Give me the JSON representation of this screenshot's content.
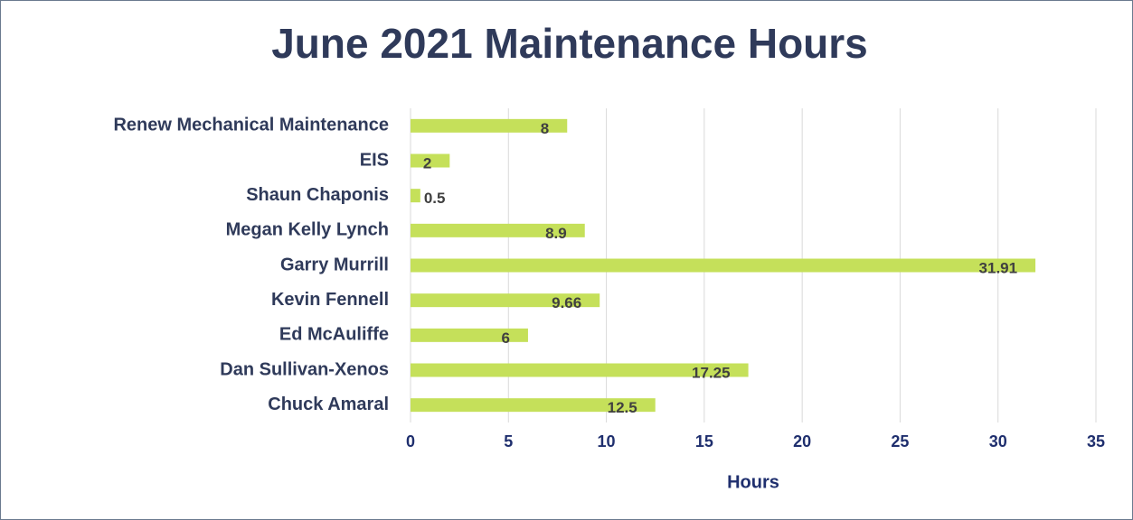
{
  "chart_data": {
    "type": "bar",
    "orientation": "horizontal",
    "title": "June 2021 Maintenance Hours",
    "x_axis_label": "Hours",
    "categories": [
      "Renew Mechanical Maintenance",
      "EIS",
      "Shaun Chaponis",
      "Megan Kelly Lynch",
      "Garry Murrill",
      "Kevin Fennell",
      "Ed McAuliffe",
      "Dan Sullivan-Xenos",
      "Chuck Amaral"
    ],
    "values": [
      8,
      2,
      0.5,
      8.9,
      31.91,
      9.66,
      6,
      17.25,
      12.5
    ],
    "color": "#c5e05a",
    "xlim": [
      0,
      35
    ],
    "xticks": [
      0,
      5,
      10,
      15,
      20,
      25,
      30,
      35
    ],
    "grid": true
  }
}
